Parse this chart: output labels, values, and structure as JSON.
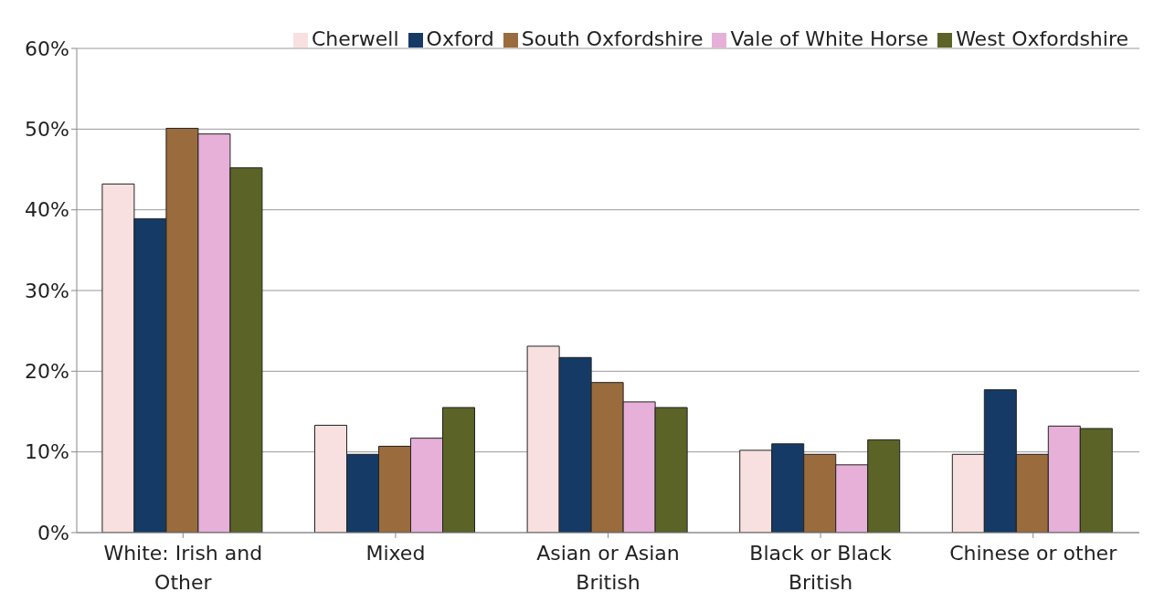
{
  "chart_data": {
    "type": "bar",
    "categories": [
      "White: Irish and Other",
      "Mixed",
      "Asian or Asian British",
      "Black or Black British",
      "Chinese or other"
    ],
    "series": [
      {
        "name": "Cherwell",
        "color": "#f9e0e0",
        "values": [
          43.2,
          13.3,
          23.1,
          10.2,
          9.7
        ]
      },
      {
        "name": "Oxford",
        "color": "#153a66",
        "values": [
          38.9,
          9.7,
          21.7,
          11.0,
          17.7
        ]
      },
      {
        "name": "South Oxfordshire",
        "color": "#9a6b3c",
        "values": [
          50.1,
          10.7,
          18.6,
          9.7,
          9.7
        ]
      },
      {
        "name": "Vale of White Horse",
        "color": "#e6b0d8",
        "values": [
          49.4,
          11.7,
          16.2,
          8.4,
          13.2
        ]
      },
      {
        "name": "West Oxfordshire",
        "color": "#5b6326",
        "values": [
          45.2,
          15.5,
          15.5,
          11.5,
          12.9
        ]
      }
    ],
    "ylim": [
      0,
      60
    ],
    "yticks": [
      {
        "value": 0,
        "label": "0%"
      },
      {
        "value": 10,
        "label": "10%"
      },
      {
        "value": 20,
        "label": "20%"
      },
      {
        "value": 30,
        "label": "30%"
      },
      {
        "value": 40,
        "label": "40%"
      },
      {
        "value": 50,
        "label": "50%"
      },
      {
        "value": 60,
        "label": "60%"
      }
    ],
    "grid": "y",
    "legend": "top right"
  }
}
